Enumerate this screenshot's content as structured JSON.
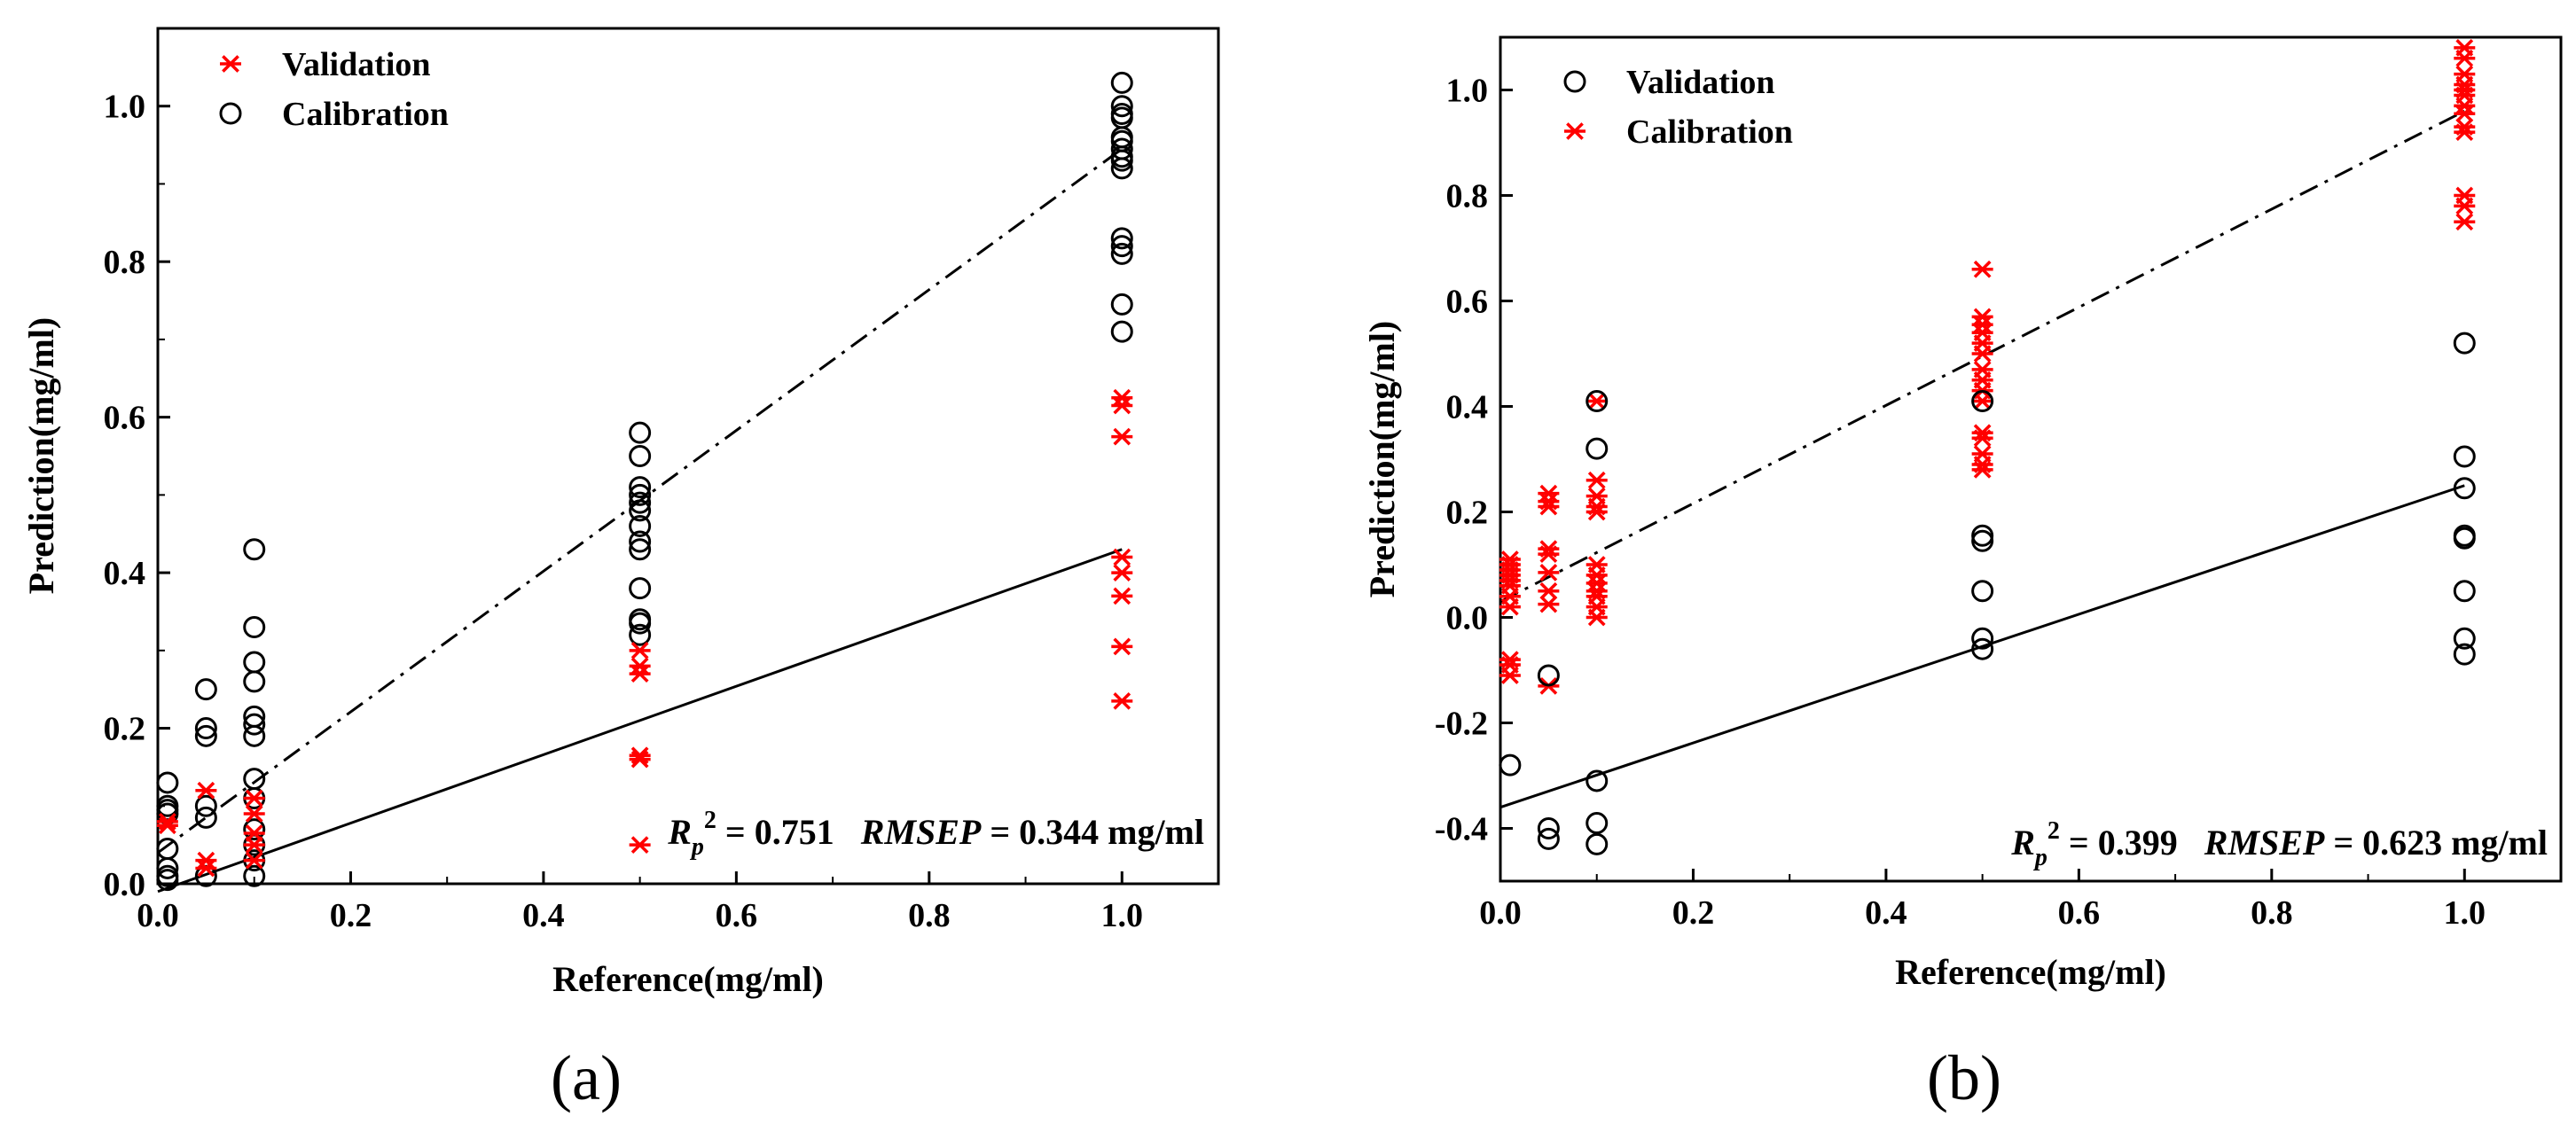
{
  "chart_data": [
    {
      "type": "scatter",
      "caption": "(a)",
      "xlabel": "Reference(mg/ml)",
      "ylabel": "Prediction(mg/ml)",
      "xlim": [
        0.0,
        1.1
      ],
      "ylim": [
        0.0,
        1.1
      ],
      "xticks": [
        "0.0",
        "0.2",
        "0.4",
        "0.6",
        "0.8",
        "1.0"
      ],
      "yticks": [
        "0.0",
        "0.2",
        "0.4",
        "0.6",
        "0.8",
        "1.0"
      ],
      "legend": [
        {
          "label": "Validation",
          "marker": "asterisk",
          "color": "#ff0000"
        },
        {
          "label": "Calibration",
          "marker": "circle",
          "color": "#000000"
        }
      ],
      "annotation": {
        "r_label": "R",
        "r_sub": "p",
        "r_sup": "2",
        "r_value": " = 0.751",
        "rmsep_label": "RMSEP",
        "rmsep_value": " = 0.344 mg/ml"
      },
      "series": [
        {
          "name": "Calibration",
          "marker": "circle",
          "color": "#000000",
          "x": [
            0.01,
            0.01,
            0.01,
            0.01,
            0.01,
            0.01,
            0.01,
            0.01,
            0.05,
            0.05,
            0.05,
            0.05,
            0.05,
            0.05,
            0.1,
            0.1,
            0.1,
            0.1,
            0.1,
            0.1,
            0.1,
            0.1,
            0.1,
            0.1,
            0.1,
            0.1,
            0.1,
            0.5,
            0.5,
            0.5,
            0.5,
            0.5,
            0.5,
            0.5,
            0.5,
            0.5,
            0.5,
            0.5,
            0.5,
            0.5,
            1.0,
            1.0,
            1.0,
            1.0,
            1.0,
            1.0,
            1.0,
            1.0,
            1.0,
            1.0,
            1.0,
            1.0,
            1.0,
            1.0,
            1.0
          ],
          "y": [
            0.13,
            0.1,
            0.095,
            0.09,
            0.045,
            0.02,
            0.01,
            0.005,
            0.25,
            0.2,
            0.19,
            0.1,
            0.085,
            0.01,
            0.43,
            0.33,
            0.285,
            0.26,
            0.215,
            0.205,
            0.19,
            0.135,
            0.11,
            0.07,
            0.05,
            0.03,
            0.01,
            0.58,
            0.55,
            0.51,
            0.5,
            0.49,
            0.48,
            0.46,
            0.44,
            0.43,
            0.38,
            0.34,
            0.335,
            0.32,
            1.03,
            1.0,
            0.99,
            0.985,
            0.955,
            0.945,
            0.935,
            0.92,
            0.83,
            0.82,
            0.81,
            0.745,
            0.71,
            0.93,
            0.96
          ]
        },
        {
          "name": "Validation",
          "marker": "asterisk",
          "color": "#ff0000",
          "x": [
            0.01,
            0.01,
            0.05,
            0.05,
            0.05,
            0.1,
            0.1,
            0.1,
            0.1,
            0.1,
            0.5,
            0.5,
            0.5,
            0.5,
            0.5,
            0.5,
            1.0,
            1.0,
            1.0,
            1.0,
            1.0,
            1.0,
            1.0,
            1.0
          ],
          "y": [
            0.08,
            0.075,
            0.12,
            0.03,
            0.02,
            0.11,
            0.09,
            0.065,
            0.05,
            0.03,
            0.3,
            0.28,
            0.27,
            0.165,
            0.16,
            0.05,
            0.625,
            0.615,
            0.575,
            0.42,
            0.4,
            0.37,
            0.305,
            0.235
          ]
        }
      ],
      "lines": [
        {
          "style": "dash-dot",
          "x": [
            0.0,
            1.0
          ],
          "y": [
            0.04,
            0.945
          ]
        },
        {
          "style": "solid",
          "x": [
            0.0,
            1.0
          ],
          "y": [
            -0.01,
            0.43
          ]
        }
      ]
    },
    {
      "type": "scatter",
      "caption": "(b)",
      "xlabel": "Reference(mg/ml)",
      "ylabel": "Prediction(mg/ml)",
      "xlim": [
        0.0,
        1.1
      ],
      "ylim": [
        -0.5,
        1.1
      ],
      "xticks": [
        "0.0",
        "0.2",
        "0.4",
        "0.6",
        "0.8",
        "1.0"
      ],
      "yticks": [
        "-0.4",
        "-0.2",
        "0.0",
        "0.2",
        "0.4",
        "0.6",
        "0.8",
        "1.0"
      ],
      "legend": [
        {
          "label": "Validation",
          "marker": "circle",
          "color": "#000000"
        },
        {
          "label": "Calibration",
          "marker": "asterisk",
          "color": "#ff0000"
        }
      ],
      "annotation": {
        "r_label": "R",
        "r_sub": "p",
        "r_sup": "2",
        "r_value": " = 0.399",
        "rmsep_label": "RMSEP",
        "rmsep_value": " = 0.623 mg/ml"
      },
      "series": [
        {
          "name": "Calibration",
          "marker": "asterisk",
          "color": "#ff0000",
          "x": [
            0.01,
            0.01,
            0.01,
            0.01,
            0.01,
            0.01,
            0.01,
            0.01,
            0.01,
            0.01,
            0.01,
            0.05,
            0.05,
            0.05,
            0.05,
            0.05,
            0.05,
            0.05,
            0.05,
            0.05,
            0.1,
            0.1,
            0.1,
            0.1,
            0.1,
            0.1,
            0.1,
            0.1,
            0.1,
            0.1,
            0.1,
            0.1,
            0.5,
            0.5,
            0.5,
            0.5,
            0.5,
            0.5,
            0.5,
            0.5,
            0.5,
            0.5,
            0.5,
            0.5,
            0.5,
            0.5,
            0.5,
            1.0,
            1.0,
            1.0,
            1.0,
            1.0,
            1.0,
            1.0,
            1.0,
            1.0,
            1.0,
            1.0,
            1.0,
            1.0
          ],
          "y": [
            0.11,
            0.1,
            0.09,
            0.08,
            0.07,
            0.06,
            0.04,
            0.02,
            -0.08,
            -0.09,
            -0.11,
            0.235,
            0.22,
            0.21,
            0.13,
            0.12,
            0.085,
            0.05,
            0.025,
            -0.13,
            0.41,
            0.26,
            0.23,
            0.21,
            0.2,
            0.1,
            0.08,
            0.065,
            0.05,
            0.04,
            0.02,
            0.0,
            0.66,
            0.57,
            0.555,
            0.54,
            0.52,
            0.5,
            0.47,
            0.45,
            0.43,
            0.41,
            0.35,
            0.34,
            0.31,
            0.29,
            0.28,
            1.08,
            1.06,
            1.03,
            1.01,
            1.0,
            0.99,
            0.97,
            0.955,
            0.93,
            0.92,
            0.8,
            0.78,
            0.75
          ]
        },
        {
          "name": "Validation",
          "marker": "circle",
          "color": "#000000",
          "x": [
            0.01,
            0.05,
            0.05,
            0.05,
            0.1,
            0.1,
            0.1,
            0.1,
            0.1,
            0.5,
            0.5,
            0.5,
            0.5,
            0.5,
            0.5,
            1.0,
            1.0,
            1.0,
            1.0,
            1.0,
            1.0,
            1.0,
            1.0
          ],
          "y": [
            -0.28,
            -0.11,
            -0.4,
            -0.42,
            0.41,
            0.32,
            -0.31,
            -0.39,
            -0.43,
            0.155,
            0.145,
            0.05,
            -0.04,
            -0.06,
            0.41,
            0.52,
            0.305,
            0.245,
            0.155,
            0.15,
            0.05,
            -0.04,
            -0.07
          ]
        }
      ],
      "lines": [
        {
          "style": "dash-dot",
          "x": [
            0.0,
            1.0
          ],
          "y": [
            0.03,
            0.96
          ]
        },
        {
          "style": "solid",
          "x": [
            0.0,
            1.0
          ],
          "y": [
            -0.36,
            0.25
          ]
        }
      ]
    }
  ]
}
